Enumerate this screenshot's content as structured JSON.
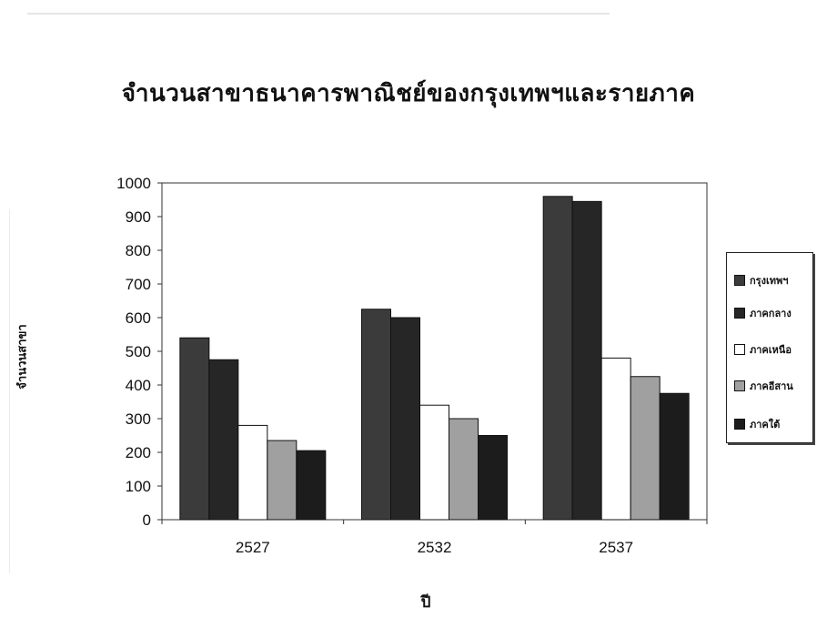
{
  "chart_data": {
    "type": "bar",
    "title": "จำนวนสาขาธนาคารพาณิชย์ของกรุงเทพฯและรายภาค",
    "xlabel": "ปี",
    "ylabel": "จำนวนสาขา",
    "ylim": [
      0,
      1000
    ],
    "yticks": [
      "0",
      "100",
      "200",
      "300",
      "400",
      "500",
      "600",
      "700",
      "800",
      "900",
      "1000"
    ],
    "categories": [
      "2527",
      "2532",
      "2537"
    ],
    "legend_position": "right",
    "grid": false,
    "series": [
      {
        "name": "กรุงเทพฯ",
        "values": [
          540,
          625,
          960
        ],
        "color": "#3b3b3b"
      },
      {
        "name": "ภาคกลาง",
        "values": [
          475,
          600,
          945
        ],
        "color": "#262626"
      },
      {
        "name": "ภาคเหนือ",
        "values": [
          280,
          340,
          480
        ],
        "color": "#ffffff"
      },
      {
        "name": "ภาคอีสาน",
        "values": [
          235,
          300,
          425
        ],
        "color": "#a0a0a0"
      },
      {
        "name": "ภาคใต้",
        "values": [
          205,
          250,
          375
        ],
        "color": "#1c1c1c"
      }
    ]
  }
}
